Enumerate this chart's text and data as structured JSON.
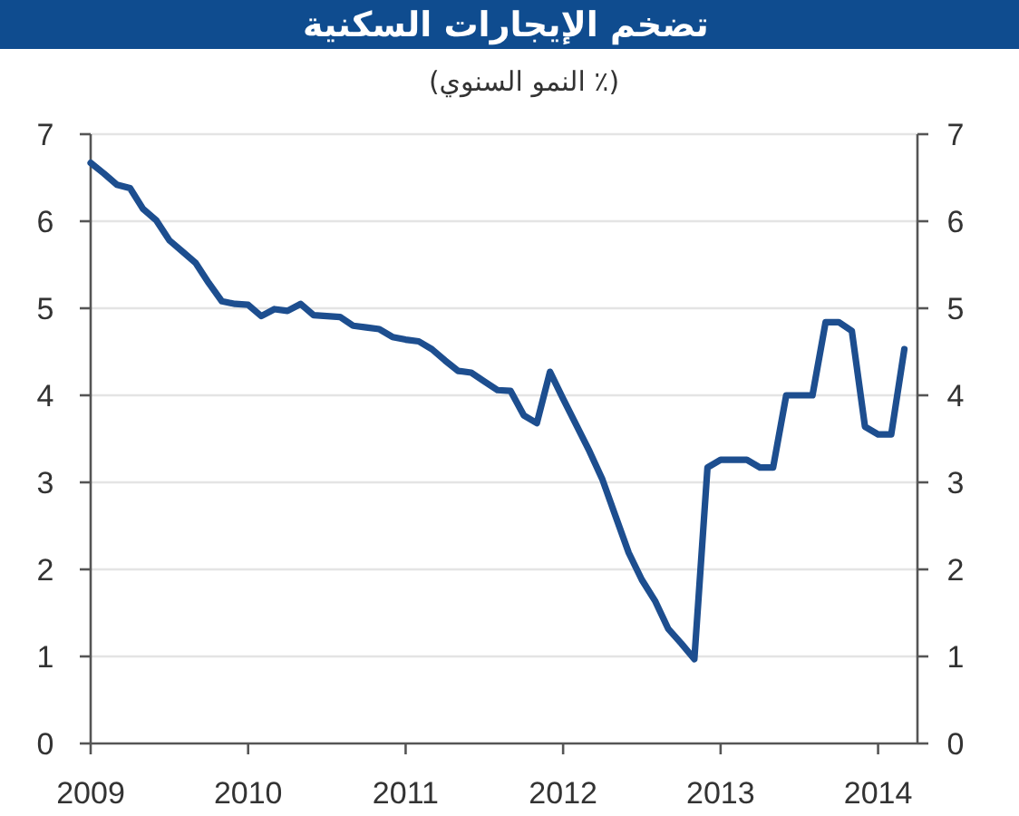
{
  "chart_data": {
    "type": "line",
    "title": "تضخم الإيجارات السكنية",
    "subtitle": "(٪ النمو السنوي)",
    "x": [
      "2009-01",
      "2009-02",
      "2009-03",
      "2009-04",
      "2009-05",
      "2009-06",
      "2009-07",
      "2009-08",
      "2009-09",
      "2009-10",
      "2009-11",
      "2009-12",
      "2010-01",
      "2010-02",
      "2010-03",
      "2010-04",
      "2010-05",
      "2010-06",
      "2010-07",
      "2010-08",
      "2010-09",
      "2010-10",
      "2010-11",
      "2010-12",
      "2011-01",
      "2011-02",
      "2011-03",
      "2011-04",
      "2011-05",
      "2011-06",
      "2011-07",
      "2011-08",
      "2011-09",
      "2011-10",
      "2011-11",
      "2011-12",
      "2012-01",
      "2012-02",
      "2012-03",
      "2012-04",
      "2012-05",
      "2012-06",
      "2012-07",
      "2012-08",
      "2012-09",
      "2012-10",
      "2012-11",
      "2012-12",
      "2013-01",
      "2013-02",
      "2013-03",
      "2013-04",
      "2013-05",
      "2013-06",
      "2013-07",
      "2013-08",
      "2013-09",
      "2013-10",
      "2013-11",
      "2013-12",
      "2014-01",
      "2014-02",
      "2014-03"
    ],
    "series": [
      {
        "color": "#1d4e8f",
        "values": [
          6.67,
          6.55,
          6.42,
          6.38,
          6.14,
          6.01,
          5.78,
          5.65,
          5.52,
          5.29,
          5.08,
          5.05,
          5.04,
          4.91,
          4.99,
          4.97,
          5.05,
          4.92,
          4.91,
          4.9,
          4.8,
          4.78,
          4.76,
          4.67,
          4.64,
          4.62,
          4.53,
          4.4,
          4.28,
          4.26,
          4.16,
          4.06,
          4.05,
          3.77,
          3.68,
          4.27,
          3.96,
          3.66,
          3.36,
          3.03,
          2.61,
          2.19,
          1.88,
          1.64,
          1.32,
          1.15,
          0.97,
          3.17,
          3.26,
          3.26,
          3.26,
          3.17,
          3.17,
          4.0,
          4.0,
          4.0,
          4.84,
          4.84,
          4.74,
          3.64,
          3.55,
          3.55,
          4.53
        ]
      }
    ],
    "xlim": [
      "2009-01",
      "2014-04"
    ],
    "xticks": [
      "2009",
      "2010",
      "2011",
      "2012",
      "2013",
      "2014"
    ],
    "ylim": [
      0,
      7
    ],
    "yticks": [
      0,
      1,
      2,
      3,
      4,
      5,
      6,
      7
    ],
    "y2lim": [
      0,
      7
    ],
    "y2ticks": [
      0,
      1,
      2,
      3,
      4,
      5,
      6,
      7
    ],
    "grid": "y",
    "line_style": "solid"
  }
}
